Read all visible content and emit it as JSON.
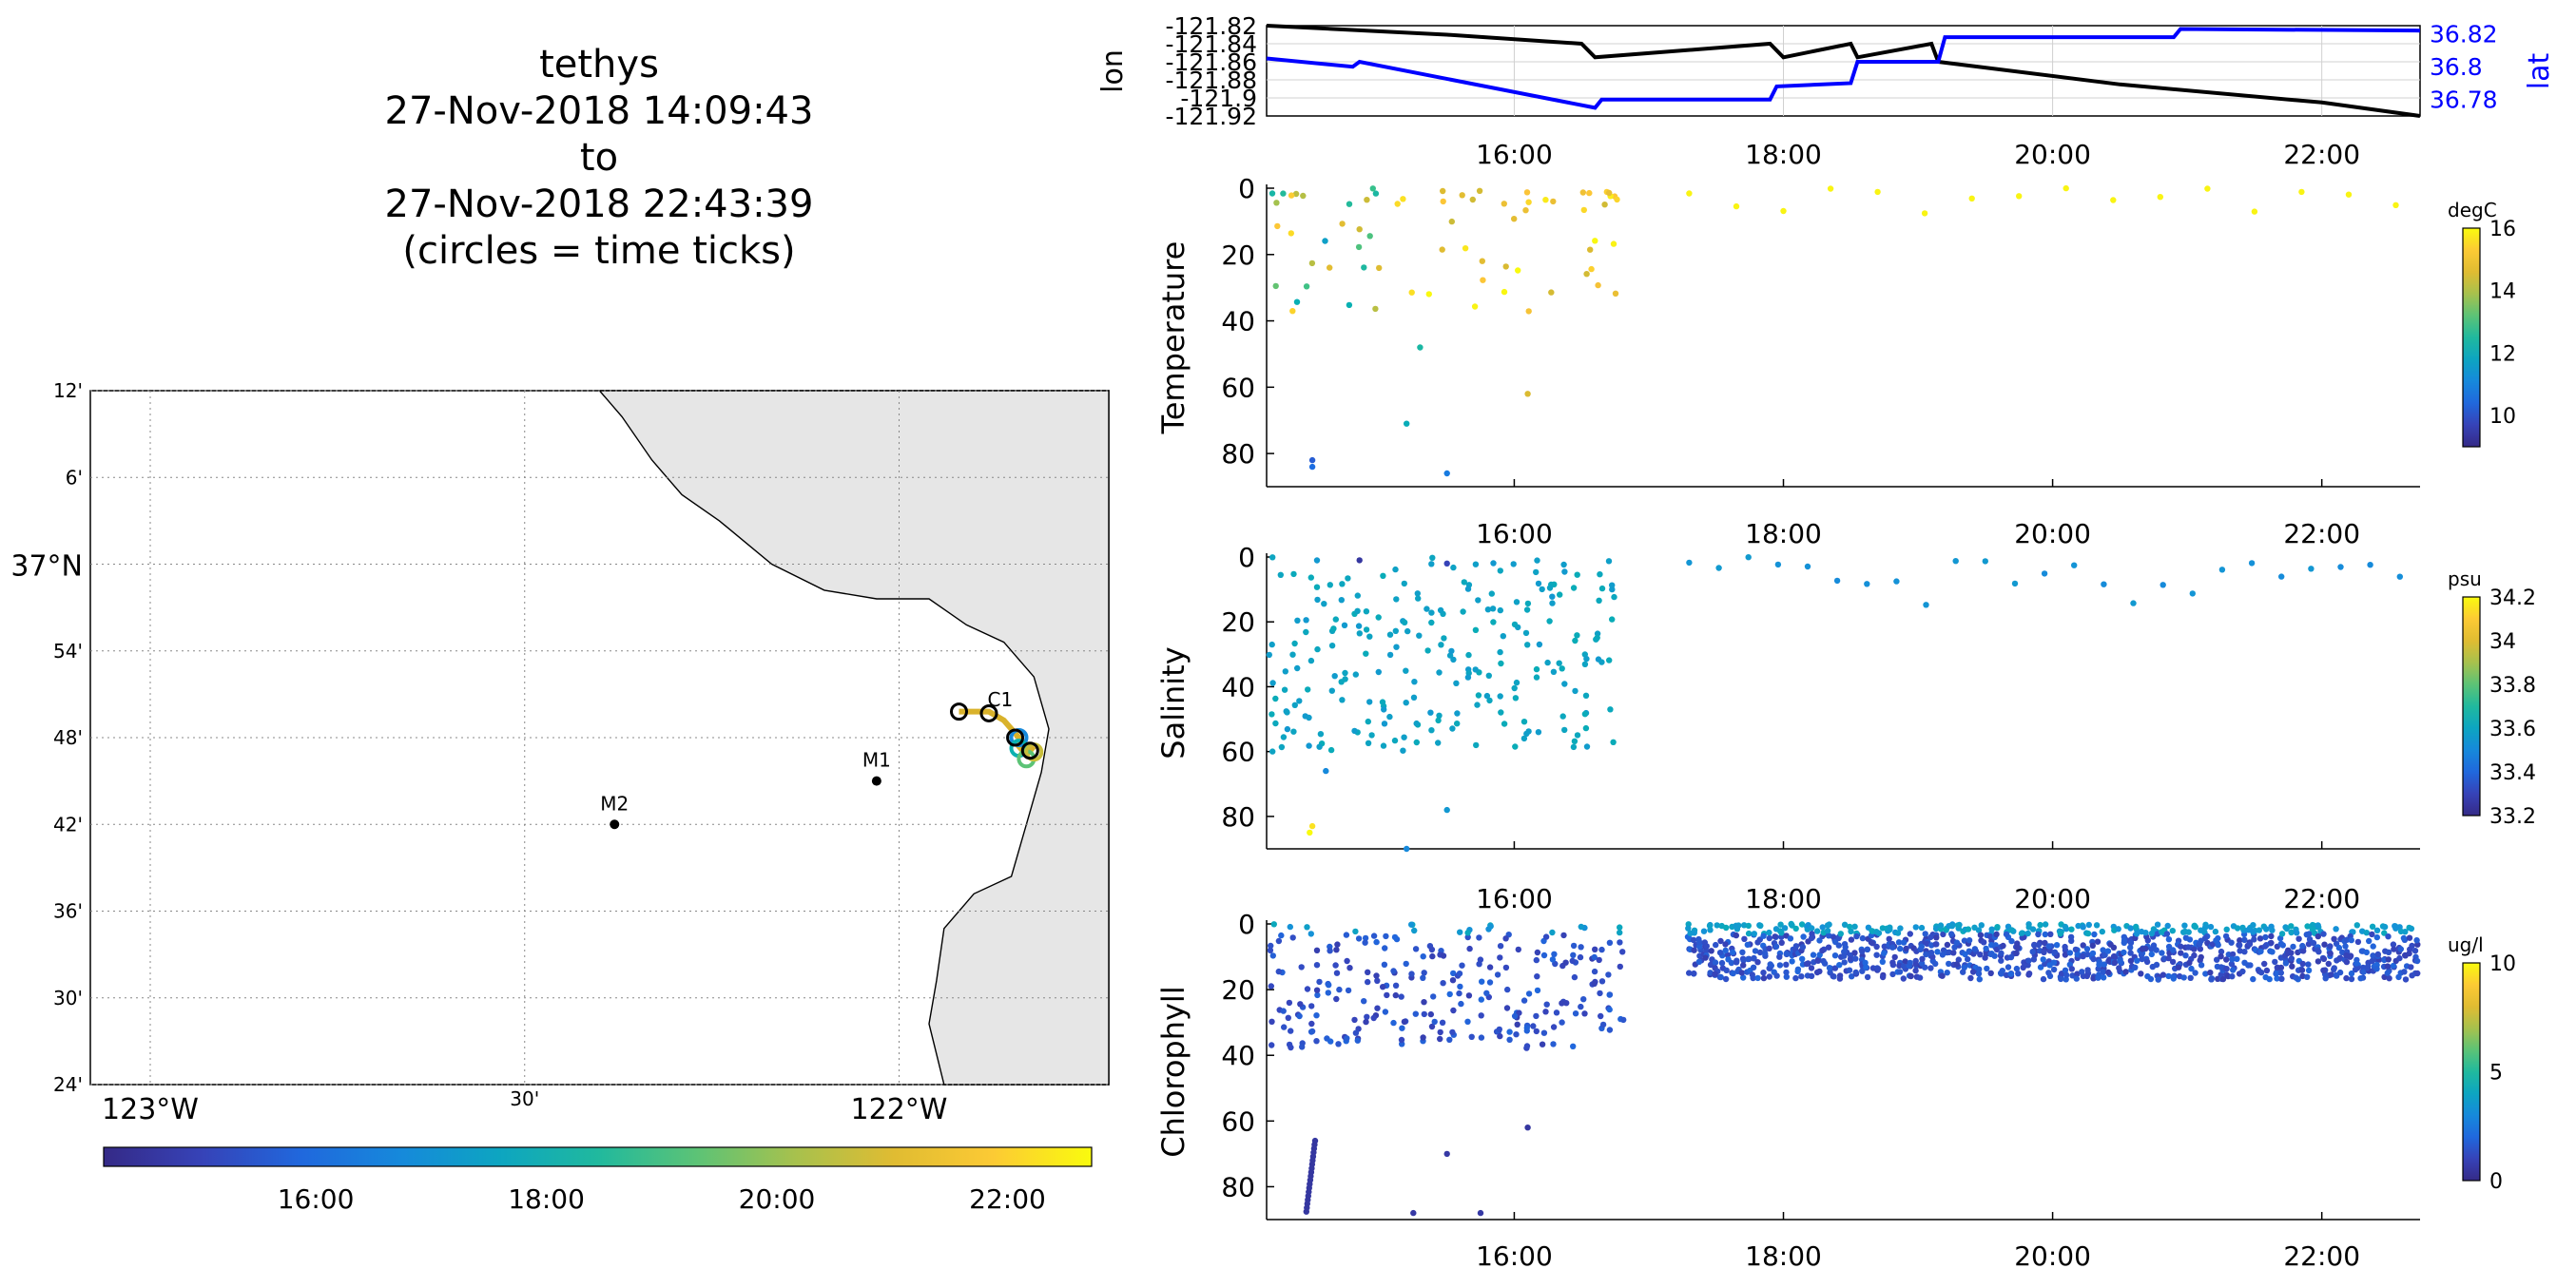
{
  "title": {
    "lines": [
      "tethys",
      "27-Nov-2018 14:09:43",
      "to",
      "27-Nov-2018 22:43:39",
      "(circles = time ticks)"
    ]
  },
  "colors": {
    "track_line": "#000000",
    "lat_line": "#0000ff",
    "land": "#e6e6e6",
    "grid": "#c8c8c8"
  },
  "chart_data": [
    {
      "id": "map",
      "type": "map",
      "lat_ticks": [
        "12'",
        "6'",
        "37°N",
        "54'",
        "48'",
        "42'",
        "36'",
        "30'",
        "24'"
      ],
      "lon_ticks": [
        "123°W",
        "30'",
        "122°W"
      ],
      "markers": [
        {
          "name": "M1",
          "lon": -122.03,
          "lat": 36.75
        },
        {
          "name": "M2",
          "lon": -122.38,
          "lat": 36.7
        },
        {
          "name": "C1",
          "lon": -121.87,
          "lat": 36.82
        }
      ],
      "track_points": [
        [
          -121.92,
          36.83
        ],
        [
          -121.9,
          36.83
        ],
        [
          -121.88,
          36.83
        ],
        [
          -121.86,
          36.82
        ],
        [
          -121.85,
          36.81
        ],
        [
          -121.84,
          36.8
        ],
        [
          -121.84,
          36.79
        ],
        [
          -121.83,
          36.78
        ],
        [
          -121.82,
          36.79
        ]
      ],
      "time_colorbar": {
        "ticks": [
          "16:00",
          "18:00",
          "20:00",
          "22:00"
        ]
      }
    },
    {
      "id": "position",
      "type": "line",
      "y_left": {
        "label": "lon",
        "ticks": [
          "-121.82",
          "-121.84",
          "-121.86",
          "-121.88",
          "-121.9",
          "-121.92"
        ]
      },
      "y_right": {
        "label": "lat",
        "ticks": [
          "36.82",
          "36.8",
          "36.78"
        ]
      },
      "x_ticks": [
        "16:00",
        "18:00",
        "20:00",
        "22:00"
      ],
      "series": [
        {
          "name": "lon",
          "x": [
            14.16,
            15.5,
            16.5,
            16.6,
            17.9,
            18.0,
            18.5,
            18.55,
            19.1,
            19.15,
            20.5,
            22.0,
            22.73
          ],
          "y": [
            -121.82,
            -121.83,
            -121.84,
            -121.855,
            -121.84,
            -121.855,
            -121.84,
            -121.855,
            -121.84,
            -121.86,
            -121.885,
            -121.905,
            -121.92
          ]
        },
        {
          "name": "lat",
          "x": [
            14.16,
            14.8,
            14.85,
            16.6,
            16.65,
            17.9,
            17.95,
            18.5,
            18.55,
            19.15,
            19.2,
            20.9,
            20.95,
            22.73
          ],
          "y": [
            36.805,
            36.8,
            36.803,
            36.775,
            36.78,
            36.78,
            36.788,
            36.79,
            36.803,
            36.803,
            36.818,
            36.818,
            36.823,
            36.822
          ]
        }
      ]
    },
    {
      "id": "temperature",
      "type": "scatter",
      "ylabel": "Temperature",
      "units": "degC",
      "ylim": [
        90,
        0
      ],
      "clim": [
        9,
        16
      ],
      "cbar_ticks": [
        "16",
        "14",
        "12",
        "10"
      ],
      "yticks": [
        "0",
        "20",
        "40",
        "60",
        "80"
      ],
      "x_ticks": [
        "16:00",
        "18:00",
        "20:00",
        "22:00"
      ]
    },
    {
      "id": "salinity",
      "type": "scatter",
      "ylabel": "Salinity",
      "units": "psu",
      "ylim": [
        90,
        0
      ],
      "clim": [
        33.2,
        34.2
      ],
      "cbar_ticks": [
        "34.2",
        "34",
        "33.8",
        "33.6",
        "33.4",
        "33.2"
      ],
      "yticks": [
        "0",
        "20",
        "40",
        "60",
        "80"
      ],
      "x_ticks": [
        "16:00",
        "18:00",
        "20:00",
        "22:00"
      ]
    },
    {
      "id": "chlorophyll",
      "type": "scatter",
      "ylabel": "Chlorophyll",
      "units": "ug/l",
      "ylim": [
        90,
        0
      ],
      "clim": [
        0,
        10
      ],
      "cbar_ticks": [
        "10",
        "5",
        "0"
      ],
      "yticks": [
        "0",
        "20",
        "40",
        "60",
        "80"
      ],
      "x_ticks": [
        "16:00",
        "18:00",
        "20:00",
        "22:00"
      ]
    }
  ]
}
